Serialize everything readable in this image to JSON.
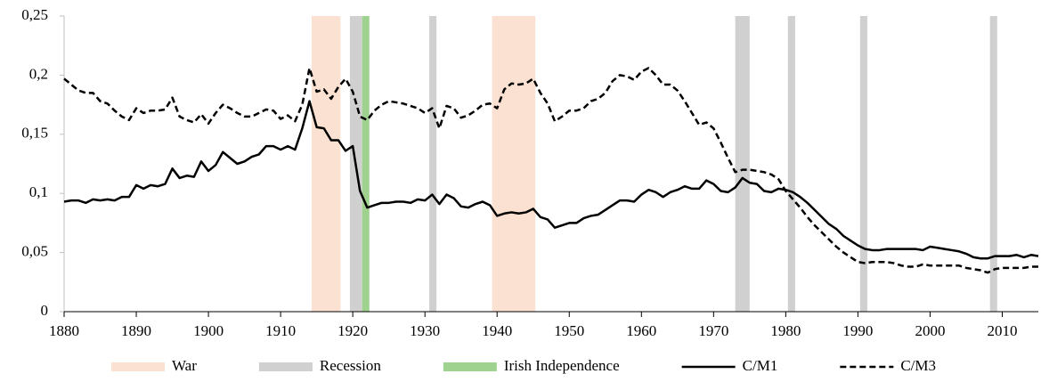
{
  "chart_data": {
    "type": "line",
    "x": [
      1880,
      1881,
      1882,
      1883,
      1884,
      1885,
      1886,
      1887,
      1888,
      1889,
      1890,
      1891,
      1892,
      1893,
      1894,
      1895,
      1896,
      1897,
      1898,
      1899,
      1900,
      1901,
      1902,
      1903,
      1904,
      1905,
      1906,
      1907,
      1908,
      1909,
      1910,
      1911,
      1912,
      1913,
      1914,
      1915,
      1916,
      1917,
      1918,
      1919,
      1920,
      1921,
      1922,
      1923,
      1924,
      1925,
      1926,
      1927,
      1928,
      1929,
      1930,
      1931,
      1932,
      1933,
      1934,
      1935,
      1936,
      1937,
      1938,
      1939,
      1940,
      1941,
      1942,
      1943,
      1944,
      1945,
      1946,
      1947,
      1948,
      1949,
      1950,
      1951,
      1952,
      1953,
      1954,
      1955,
      1956,
      1957,
      1958,
      1959,
      1960,
      1961,
      1962,
      1963,
      1964,
      1965,
      1966,
      1967,
      1968,
      1969,
      1970,
      1971,
      1972,
      1973,
      1974,
      1975,
      1976,
      1977,
      1978,
      1979,
      1980,
      1981,
      1982,
      1983,
      1984,
      1985,
      1986,
      1987,
      1988,
      1989,
      1990,
      1991,
      1992,
      1993,
      1994,
      1995,
      1996,
      1997,
      1998,
      1999,
      2000,
      2001,
      2002,
      2003,
      2004,
      2005,
      2006,
      2007,
      2008,
      2009,
      2010,
      2011,
      2012,
      2013,
      2014,
      2015
    ],
    "series": [
      {
        "name": "C/M1",
        "color": "#000000",
        "style": "solid",
        "values": [
          0.093,
          0.094,
          0.094,
          0.092,
          0.095,
          0.094,
          0.095,
          0.094,
          0.097,
          0.097,
          0.107,
          0.104,
          0.107,
          0.106,
          0.108,
          0.121,
          0.113,
          0.115,
          0.114,
          0.127,
          0.119,
          0.124,
          0.135,
          0.13,
          0.125,
          0.127,
          0.131,
          0.133,
          0.14,
          0.14,
          0.137,
          0.14,
          0.137,
          0.155,
          0.178,
          0.156,
          0.155,
          0.145,
          0.145,
          0.136,
          0.14,
          0.102,
          0.088,
          0.09,
          0.092,
          0.092,
          0.093,
          0.093,
          0.092,
          0.095,
          0.094,
          0.099,
          0.091,
          0.099,
          0.096,
          0.089,
          0.088,
          0.091,
          0.093,
          0.09,
          0.081,
          0.083,
          0.084,
          0.083,
          0.084,
          0.087,
          0.08,
          0.078,
          0.071,
          0.073,
          0.075,
          0.075,
          0.079,
          0.081,
          0.082,
          0.086,
          0.09,
          0.094,
          0.094,
          0.093,
          0.099,
          0.103,
          0.101,
          0.097,
          0.101,
          0.103,
          0.106,
          0.104,
          0.104,
          0.111,
          0.108,
          0.102,
          0.101,
          0.105,
          0.113,
          0.109,
          0.108,
          0.102,
          0.101,
          0.104,
          0.103,
          0.101,
          0.097,
          0.092,
          0.086,
          0.08,
          0.074,
          0.07,
          0.064,
          0.06,
          0.056,
          0.053,
          0.052,
          0.052,
          0.053,
          0.053,
          0.053,
          0.053,
          0.053,
          0.052,
          0.055,
          0.054,
          0.053,
          0.052,
          0.051,
          0.049,
          0.046,
          0.045,
          0.045,
          0.047,
          0.047,
          0.047,
          0.048,
          0.046,
          0.048,
          0.047
        ]
      },
      {
        "name": "C/M3",
        "color": "#000000",
        "style": "dashed",
        "values": [
          0.197,
          0.192,
          0.187,
          0.185,
          0.185,
          0.178,
          0.176,
          0.17,
          0.165,
          0.162,
          0.172,
          0.168,
          0.17,
          0.17,
          0.171,
          0.181,
          0.165,
          0.162,
          0.16,
          0.167,
          0.159,
          0.168,
          0.175,
          0.172,
          0.168,
          0.165,
          0.165,
          0.168,
          0.171,
          0.17,
          0.163,
          0.166,
          0.161,
          0.175,
          0.206,
          0.186,
          0.188,
          0.18,
          0.19,
          0.197,
          0.186,
          0.165,
          0.162,
          0.17,
          0.175,
          0.178,
          0.177,
          0.176,
          0.174,
          0.172,
          0.168,
          0.172,
          0.155,
          0.174,
          0.172,
          0.164,
          0.166,
          0.17,
          0.175,
          0.176,
          0.172,
          0.188,
          0.193,
          0.192,
          0.193,
          0.197,
          0.185,
          0.176,
          0.161,
          0.165,
          0.17,
          0.17,
          0.172,
          0.178,
          0.18,
          0.185,
          0.195,
          0.2,
          0.199,
          0.196,
          0.203,
          0.206,
          0.2,
          0.192,
          0.192,
          0.187,
          0.178,
          0.168,
          0.158,
          0.16,
          0.155,
          0.143,
          0.13,
          0.118,
          0.12,
          0.12,
          0.119,
          0.118,
          0.116,
          0.112,
          0.102,
          0.095,
          0.088,
          0.08,
          0.073,
          0.067,
          0.061,
          0.055,
          0.05,
          0.046,
          0.042,
          0.041,
          0.042,
          0.042,
          0.042,
          0.041,
          0.039,
          0.038,
          0.038,
          0.04,
          0.039,
          0.039,
          0.039,
          0.039,
          0.039,
          0.037,
          0.036,
          0.035,
          0.033,
          0.036,
          0.037,
          0.037,
          0.037,
          0.037,
          0.038,
          0.038
        ]
      }
    ],
    "shading": [
      {
        "name": "War",
        "color": "#fbe1d1",
        "periods": [
          [
            1914.3,
            1918.3
          ],
          [
            1939.3,
            1945.3
          ]
        ]
      },
      {
        "name": "Recession",
        "color": "#d0d0d0",
        "periods": [
          [
            1919.6,
            1921.3
          ],
          [
            1930.6,
            1931.6
          ],
          [
            1973.0,
            1975.0
          ],
          [
            1980.3,
            1981.3
          ],
          [
            1990.3,
            1991.3
          ],
          [
            2008.3,
            2009.3
          ]
        ]
      },
      {
        "name": "Irish Independence",
        "color": "#9fd28f",
        "periods": [
          [
            1921.3,
            1922.3
          ]
        ]
      }
    ],
    "xlim": [
      1880,
      2015
    ],
    "xticks": [
      1880,
      1890,
      1900,
      1910,
      1920,
      1930,
      1940,
      1950,
      1960,
      1970,
      1980,
      1990,
      2000,
      2010
    ],
    "ylim": [
      0,
      0.25
    ],
    "yticks": [
      0,
      {
        "value": 0.05,
        "label": "0,05"
      },
      {
        "value": 0.1,
        "label": "0,1"
      },
      {
        "value": 0.15,
        "label": "0,15"
      },
      {
        "value": 0.2,
        "label": "0,2"
      },
      {
        "value": 0.25,
        "label": "0,25"
      }
    ],
    "legend": "bottom"
  }
}
